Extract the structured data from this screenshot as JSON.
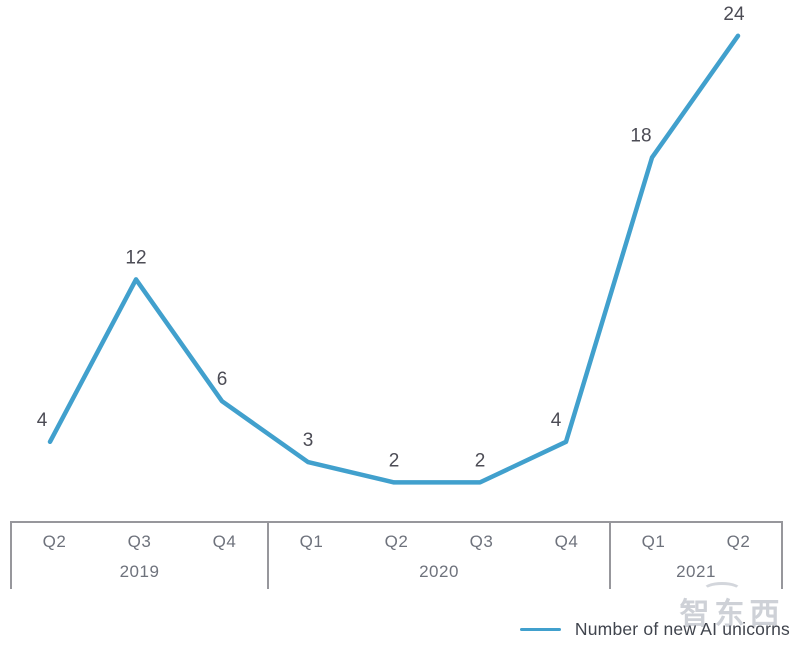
{
  "chart_data": {
    "type": "line",
    "title": "",
    "xlabel": "",
    "ylabel": "",
    "x": [
      "Q2 2019",
      "Q3 2019",
      "Q4 2019",
      "Q1 2020",
      "Q2 2020",
      "Q3 2020",
      "Q4 2020",
      "Q1 2021",
      "Q2 2021"
    ],
    "series": [
      {
        "name": "Number of new AI unicorns",
        "values": [
          4,
          12,
          6,
          3,
          2,
          2,
          4,
          18,
          24
        ]
      }
    ],
    "data_labels": [
      "4",
      "12",
      "6",
      "3",
      "2",
      "2",
      "4",
      "18",
      "24"
    ],
    "ylim": [
      0,
      26
    ],
    "grid": false,
    "legend_position": "bottom-right",
    "axis_groups": [
      {
        "year": "2019",
        "quarters": [
          "Q2",
          "Q3",
          "Q4"
        ]
      },
      {
        "year": "2020",
        "quarters": [
          "Q1",
          "Q2",
          "Q3",
          "Q4"
        ]
      },
      {
        "year": "2021",
        "quarters": [
          "Q1",
          "Q2"
        ]
      }
    ],
    "colors": {
      "line": "#41a0cd",
      "value_label": "#4c4c55",
      "axis_text": "#6e727c",
      "axis_border": "#97979c"
    }
  },
  "legend": {
    "label": "Number of new AI unicorns",
    "swatch_color": "#41a0cd"
  },
  "watermark": {
    "text": "智东西"
  }
}
